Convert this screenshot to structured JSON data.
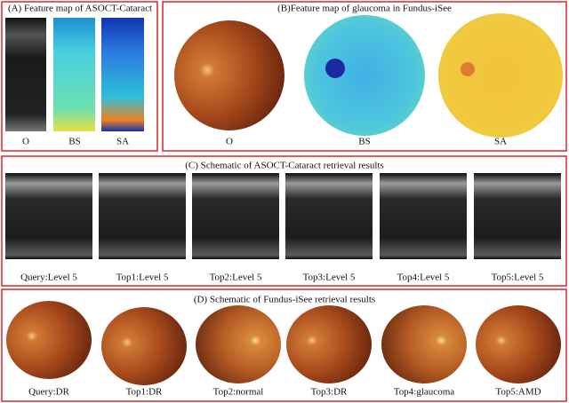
{
  "panels": [
    {
      "title": "(A) Feature map of ASOCT-Cataract",
      "labels": [
        "O",
        "BS",
        "SA"
      ]
    },
    {
      "title": "(B)Feature map of glaucoma in Fundus-iSee",
      "labels": [
        "O",
        "BS",
        "SA"
      ]
    },
    {
      "title": "(C) Schematic of ASOCT-Cataract retrieval results",
      "labels": [
        "Query:Level 5",
        "Top1:Level 5",
        "Top2:Level 5",
        "Top3:Level 5",
        "Top4:Level 5",
        "Top5:Level 5"
      ]
    },
    {
      "title": "(D) Schematic of Fundus-iSee retrieval results",
      "labels": [
        "Query:DR",
        "Top1:DR",
        "Top2:normal",
        "Top3:DR",
        "Top4:glaucoma",
        "Top5:AMD"
      ]
    }
  ]
}
